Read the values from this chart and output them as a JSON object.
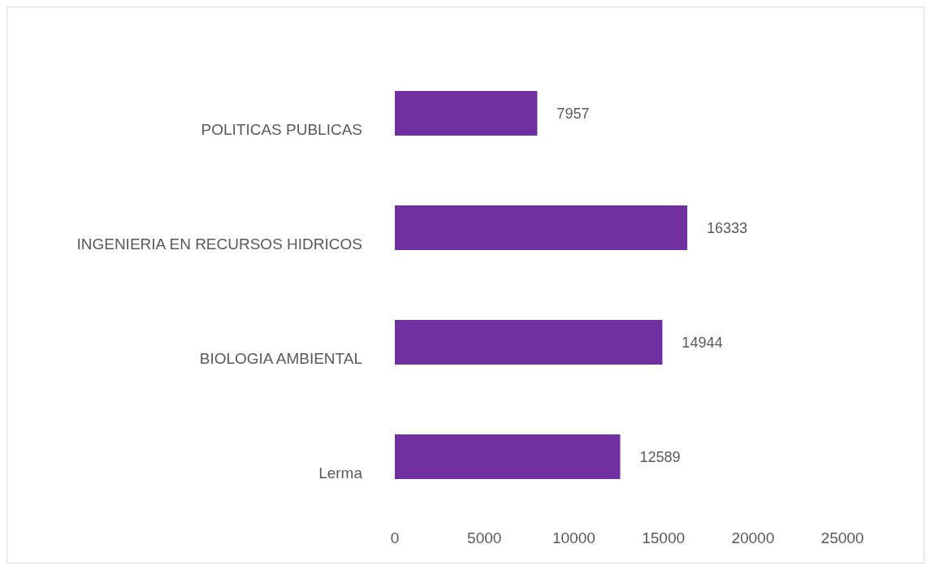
{
  "chart_data": {
    "type": "bar",
    "orientation": "horizontal",
    "categories": [
      "POLITICAS PUBLICAS",
      "INGENIERIA EN RECURSOS HIDRICOS",
      "BIOLOGIA AMBIENTAL",
      "Lerma"
    ],
    "values": [
      7957,
      16333,
      14944,
      12589
    ],
    "color": "#7030a0",
    "xlim": [
      0,
      25000
    ],
    "xticks": [
      0,
      5000,
      10000,
      15000,
      20000,
      25000
    ],
    "grid": false,
    "data_labels": true
  }
}
